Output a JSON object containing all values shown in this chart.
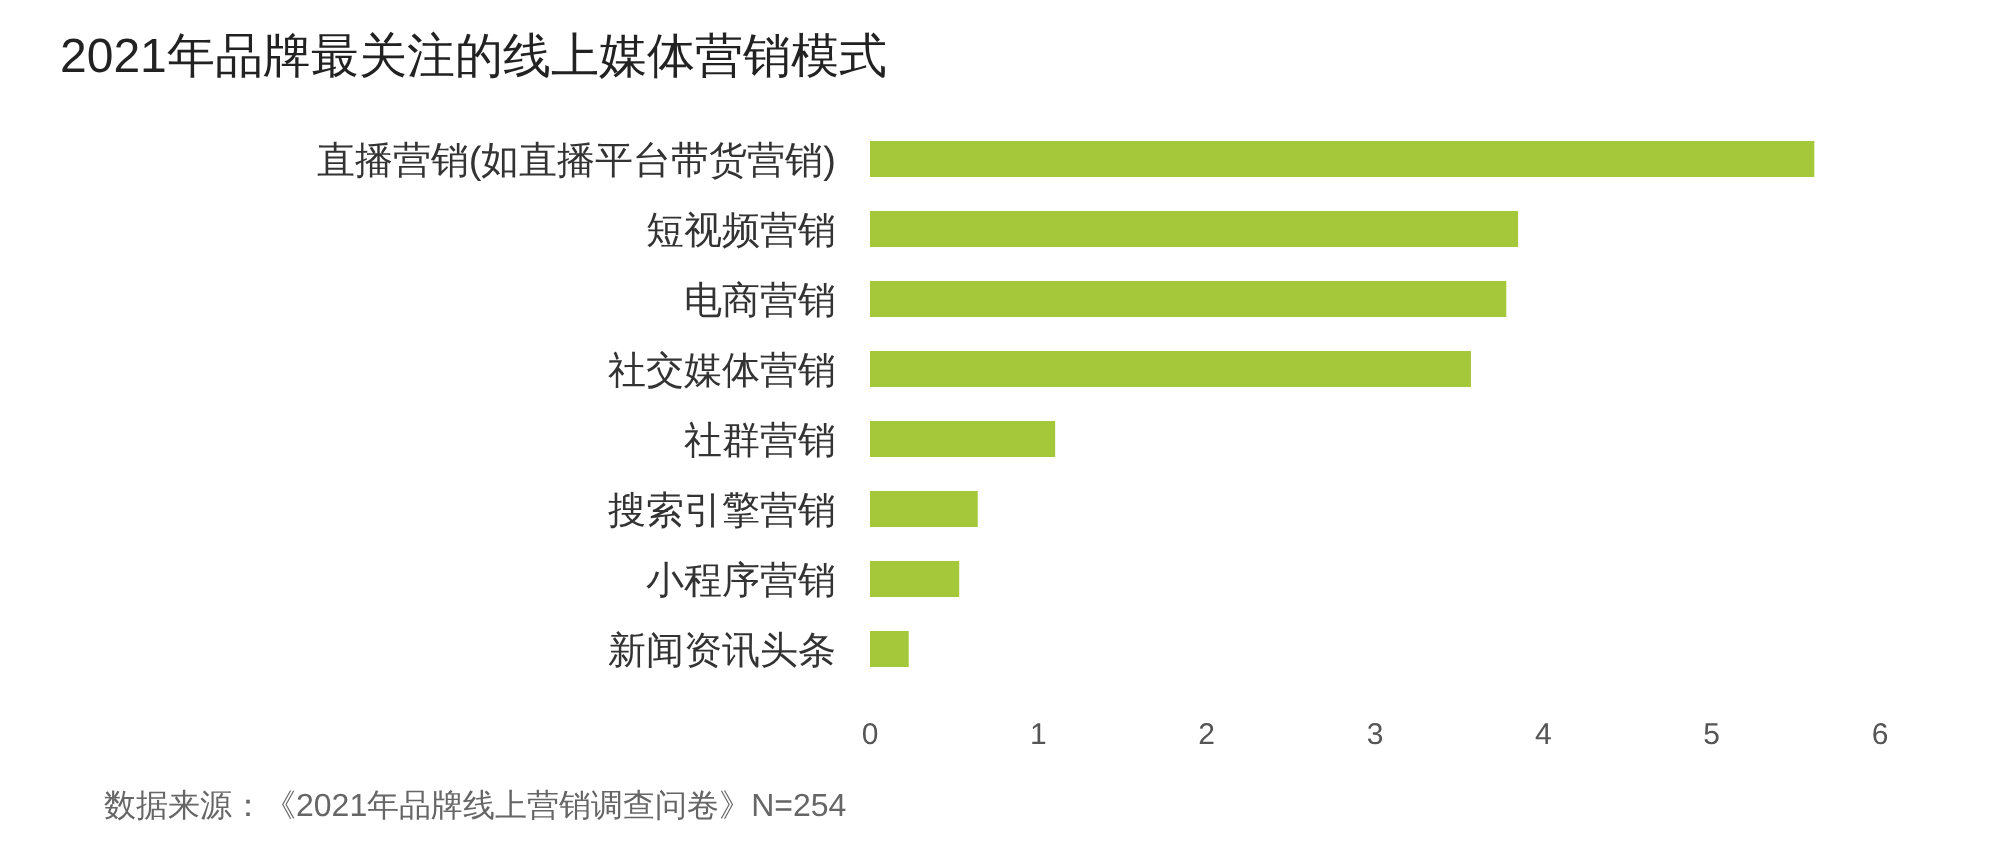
{
  "chart_data": {
    "type": "bar",
    "orientation": "horizontal",
    "title": "2021年品牌最关注的线上媒体营销模式",
    "categories": [
      "直播营销(如直播平台带货营销)",
      "短视频营销",
      "电商营销",
      "社交媒体营销",
      "社群营销",
      "搜索引擎营销",
      "小程序营销",
      "新闻资讯头条"
    ],
    "values": [
      5.61,
      3.85,
      3.78,
      3.57,
      1.1,
      0.64,
      0.53,
      0.23
    ],
    "color": "#a5c73a",
    "xlim": [
      0,
      6
    ],
    "xticks": [
      0,
      1,
      2,
      3,
      4,
      5,
      6
    ],
    "annotations": [
      "数据来源：《2021年品牌线上营销调查问卷》N=254"
    ]
  }
}
